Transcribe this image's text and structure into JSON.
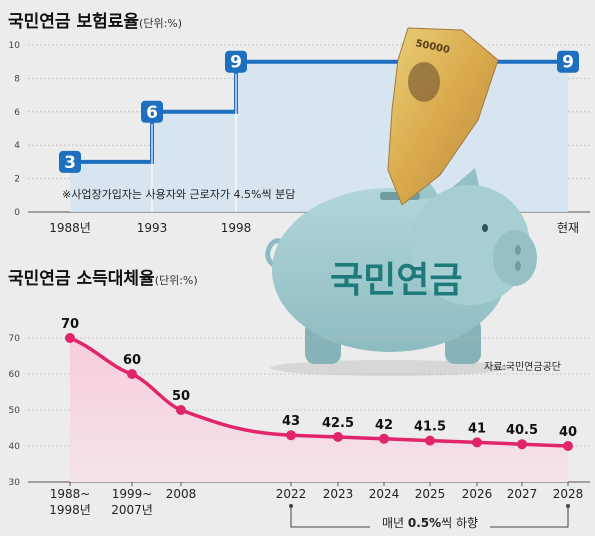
{
  "colors": {
    "background": "#ececec",
    "top_line": "#1f6fc0",
    "top_fill": "#d4e4f2",
    "bottom_line": "#e0256a",
    "bottom_fill": "#f5c8d8",
    "pig": "#9fc8cc",
    "pig_text": "#1f7a7c"
  },
  "illustration": {
    "pig_label": "국민연금",
    "banknote_label": "50000",
    "source": "자료:국민연금공단"
  },
  "chart_data": [
    {
      "type": "line",
      "title": "국민연금 보험료율",
      "unit": "(단위:%)",
      "note": "※사업장가입자는 사용자와 근로자가 4.5%씩 분담",
      "categories": [
        "1988년",
        "1993",
        "1998",
        "현재"
      ],
      "values": [
        3,
        6,
        9,
        9
      ],
      "ylim": [
        0,
        10
      ],
      "yticks": [
        "0",
        "2",
        "4",
        "6",
        "8",
        "10"
      ],
      "grid": true,
      "step": true
    },
    {
      "type": "line",
      "title": "국민연금 소득대체율",
      "unit": "(단위:%)",
      "categories": [
        [
          "1988~",
          "1998년"
        ],
        [
          "1999~",
          "2007년"
        ],
        [
          "2008"
        ],
        [
          "2022"
        ],
        [
          "2023"
        ],
        [
          "2024"
        ],
        [
          "2025"
        ],
        [
          "2026"
        ],
        [
          "2027"
        ],
        [
          "2028"
        ]
      ],
      "values": [
        70,
        60,
        50,
        43,
        42.5,
        42,
        41.5,
        41,
        40.5,
        40
      ],
      "value_labels": [
        "70",
        "60",
        "50",
        "43",
        "42.5",
        "42",
        "41.5",
        "41",
        "40.5",
        "40"
      ],
      "ylim": [
        30,
        75
      ],
      "yticks": [
        "30",
        "40",
        "50",
        "60",
        "70"
      ],
      "grid": true,
      "annotation": {
        "pre": "매년 ",
        "bold": "0.5%",
        "post": "씩 하향"
      }
    }
  ]
}
